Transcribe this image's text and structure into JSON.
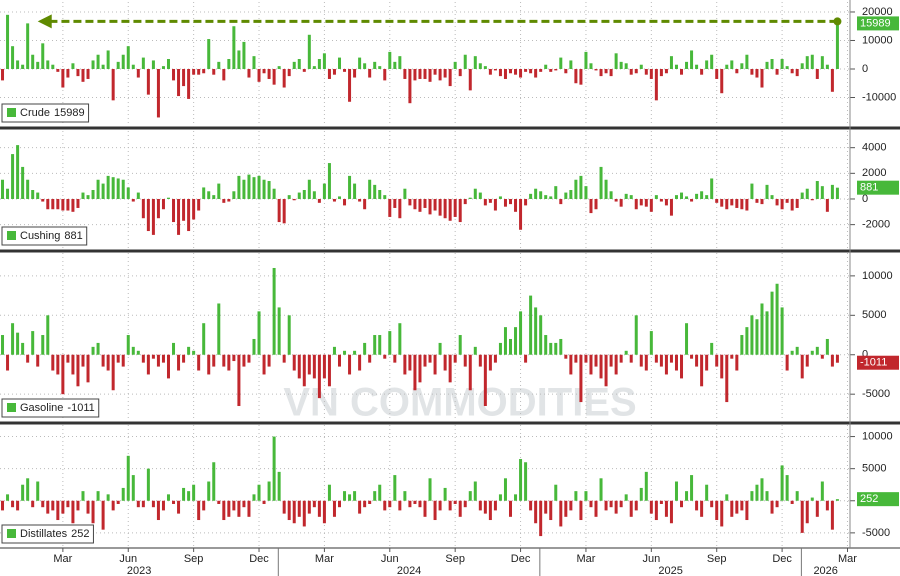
{
  "watermark": "VN COMMODITIES",
  "chart_data": [
    {
      "type": "bar",
      "ylim": [
        -20000,
        23500
      ],
      "yticks": [
        -10000,
        0,
        10000,
        20000
      ],
      "grid": true,
      "series": [
        {
          "name": "Crude",
          "color": "#47b83a",
          "negative_color": "#c1272d",
          "values": [
            -4000,
            19000,
            8000,
            3000,
            1500,
            16000,
            5000,
            2500,
            9000,
            3000,
            1500,
            -1000,
            -6500,
            -3000,
            2000,
            -2500,
            -4500,
            -3500,
            3000,
            5000,
            1500,
            6500,
            -11000,
            2500,
            5000,
            8000,
            1500,
            -3000,
            4000,
            -9000,
            3000,
            -17000,
            1000,
            3500,
            -4000,
            -9500,
            -6000,
            -10500,
            -2000,
            -2000,
            -1500,
            10500,
            -2000,
            2500,
            -4000,
            3500,
            15000,
            6500,
            9500,
            -3000,
            4500,
            -4500,
            -1500,
            -3500,
            -5500,
            1000,
            -6500,
            -2500,
            2500,
            3500,
            -1000,
            12000,
            1000,
            3500,
            5500,
            -3500,
            -2000,
            4000,
            -1000,
            -11500,
            -3000,
            4000,
            2000,
            -3000,
            2500,
            1000,
            -4000,
            6000,
            2500,
            4500,
            -3500,
            -12000,
            -4000,
            -3500,
            -3500,
            -4500,
            -2000,
            -4000,
            -3000,
            -6000,
            2500,
            -2500,
            5000,
            -7500,
            4500,
            2000,
            1000,
            -2000,
            -500,
            -2500,
            -3500,
            -1500,
            -2000,
            -3000,
            -1000,
            -1500,
            -3000,
            -1000,
            1500,
            -1000,
            -500,
            4000,
            -1500,
            3000,
            -5000,
            -5500,
            6000,
            2000,
            -500,
            -2500,
            -1500,
            -2500,
            5500,
            2500,
            2000,
            -2000,
            -1500,
            1500,
            -2000,
            -3500,
            -11000,
            -2500,
            -1500,
            4500,
            1500,
            -2000,
            2500,
            6500,
            1500,
            -2000,
            3000,
            5000,
            -3500,
            -8500,
            1500,
            3000,
            -1500,
            2000,
            5000,
            -2000,
            -3000,
            -6500,
            2500,
            3500,
            -2000,
            3500,
            1000,
            -1500,
            -2500,
            2000,
            4500,
            5000,
            -3500,
            4500,
            1500,
            -8000,
            15989,
            null,
            null
          ]
        }
      ]
    },
    {
      "type": "bar",
      "ylim": [
        -3900,
        5300
      ],
      "yticks": [
        -2000,
        0,
        2000,
        4000
      ],
      "grid": true,
      "series": [
        {
          "name": "Cushing",
          "color": "#47b83a",
          "negative_color": "#c1272d",
          "values": [
            1500,
            800,
            3500,
            4200,
            2500,
            1500,
            700,
            500,
            -200,
            -800,
            -800,
            -800,
            -900,
            -900,
            -1000,
            -700,
            500,
            300,
            700,
            1500,
            1200,
            1800,
            1700,
            1600,
            1500,
            900,
            -200,
            500,
            -1500,
            -2500,
            -2800,
            -1500,
            -800,
            100,
            -1800,
            -2800,
            -1700,
            -2500,
            -1600,
            -900,
            900,
            600,
            300,
            1200,
            -300,
            -200,
            600,
            1800,
            1500,
            1900,
            1700,
            1800,
            1500,
            1400,
            800,
            -1800,
            -1900,
            300,
            -100,
            500,
            700,
            1500,
            600,
            -300,
            1200,
            2800,
            -200,
            200,
            -500,
            1800,
            1200,
            -200,
            -800,
            1500,
            1100,
            700,
            300,
            -1400,
            -700,
            -1500,
            800,
            -500,
            -800,
            -1000,
            -700,
            -1200,
            -900,
            -1300,
            -1500,
            -1700,
            -1400,
            -1800,
            -400,
            100,
            800,
            500,
            -500,
            -300,
            -900,
            200,
            -600,
            -400,
            -1000,
            -2400,
            -500,
            400,
            800,
            600,
            300,
            200,
            1000,
            -400,
            500,
            700,
            1500,
            1800,
            1000,
            -1100,
            -800,
            2500,
            1500,
            600,
            -200,
            -600,
            400,
            300,
            -800,
            -500,
            -600,
            -1000,
            300,
            -200,
            -500,
            -1300,
            300,
            500,
            200,
            -200,
            400,
            600,
            300,
            1600,
            -300,
            -600,
            -800,
            -500,
            -700,
            -800,
            -900,
            1200,
            -300,
            -400,
            1100,
            300,
            -500,
            -800,
            -300,
            -900,
            -700,
            500,
            800,
            -100,
            1400,
            1000,
            -1000,
            1100,
            881,
            null,
            null
          ]
        }
      ]
    },
    {
      "type": "bar",
      "ylim": [
        -8400,
        12900
      ],
      "yticks": [
        -5000,
        0,
        5000,
        10000
      ],
      "grid": true,
      "series": [
        {
          "name": "Gasoline",
          "color": "#47b83a",
          "negative_color": "#c1272d",
          "values": [
            2500,
            -2000,
            4000,
            2800,
            1500,
            -1000,
            3000,
            -1500,
            2500,
            5000,
            -2000,
            -2500,
            -5000,
            -1000,
            -2500,
            -4000,
            -1500,
            -3500,
            1000,
            1500,
            -1500,
            -2000,
            -4500,
            -1000,
            -1500,
            2500,
            1000,
            500,
            -1000,
            -2500,
            -500,
            -1500,
            -1000,
            -3000,
            1500,
            -2000,
            -1000,
            1000,
            500,
            -2000,
            4000,
            -2500,
            -1500,
            6500,
            -1500,
            -2000,
            -800,
            -6500,
            -1500,
            -1000,
            2000,
            5500,
            -2500,
            -1500,
            11000,
            6000,
            -1000,
            5000,
            -2000,
            -3000,
            -4000,
            -2500,
            -3000,
            -5500,
            -3000,
            -4000,
            1000,
            -1500,
            500,
            -2500,
            500,
            -2000,
            1500,
            -1000,
            2500,
            2500,
            -500,
            3000,
            -1000,
            4000,
            -2500,
            -2000,
            -4500,
            -3500,
            -1500,
            -1000,
            -2500,
            1500,
            -2000,
            -3500,
            -1000,
            2500,
            -1500,
            -4500,
            1000,
            -1500,
            -6500,
            -2000,
            -1000,
            1500,
            3500,
            2000,
            3500,
            5500,
            -1000,
            7500,
            6000,
            5000,
            2500,
            1500,
            1500,
            2000,
            -500,
            -2500,
            -1000,
            -6000,
            -1000,
            -2500,
            -1500,
            -3000,
            -4000,
            -1500,
            -2500,
            -1000,
            500,
            -1000,
            5000,
            -1500,
            -2000,
            3000,
            -1000,
            -1500,
            -2500,
            -1000,
            -2000,
            -3000,
            4000,
            -500,
            -1500,
            -4000,
            -2000,
            1500,
            -1500,
            -3000,
            -6000,
            -500,
            -2000,
            2500,
            3500,
            5000,
            4500,
            6500,
            5500,
            8000,
            9000,
            6000,
            -2000,
            500,
            1000,
            -3000,
            -1500,
            500,
            1000,
            -500,
            2000,
            -1500,
            -1011,
            null,
            null
          ]
        }
      ]
    },
    {
      "type": "bar",
      "ylim": [
        -7200,
        11800
      ],
      "yticks": [
        -5000,
        0,
        5000,
        10000
      ],
      "grid": true,
      "categories": [
        null,
        null,
        null,
        null,
        null,
        null,
        null,
        null,
        null,
        null,
        null,
        null,
        "Mar",
        null,
        null,
        null,
        null,
        null,
        null,
        null,
        null,
        null,
        null,
        null,
        null,
        "Jun",
        null,
        null,
        null,
        null,
        null,
        null,
        null,
        null,
        null,
        null,
        null,
        null,
        "Sep",
        null,
        null,
        null,
        null,
        null,
        null,
        null,
        null,
        null,
        null,
        null,
        null,
        "Dec",
        null,
        null,
        null,
        null,
        null,
        null,
        null,
        null,
        null,
        null,
        null,
        null,
        "Mar",
        null,
        null,
        null,
        null,
        null,
        null,
        null,
        null,
        null,
        null,
        null,
        null,
        "Jun",
        null,
        null,
        null,
        null,
        null,
        null,
        null,
        null,
        null,
        null,
        null,
        null,
        "Sep",
        null,
        null,
        null,
        null,
        null,
        null,
        null,
        null,
        null,
        null,
        null,
        null,
        "Dec",
        null,
        null,
        null,
        null,
        null,
        null,
        null,
        null,
        null,
        null,
        null,
        null,
        "Mar",
        null,
        null,
        null,
        null,
        null,
        null,
        null,
        null,
        null,
        null,
        null,
        null,
        "Jun",
        null,
        null,
        null,
        null,
        null,
        null,
        null,
        null,
        null,
        null,
        null,
        null,
        "Sep",
        null,
        null,
        null,
        null,
        null,
        null,
        null,
        null,
        null,
        null,
        null,
        null,
        "Dec",
        null,
        null,
        null,
        null,
        null,
        null,
        null,
        null,
        null,
        null,
        null,
        null,
        "Mar"
      ],
      "year_labels": [
        "2023",
        "2024",
        "2025",
        "2026"
      ],
      "series": [
        {
          "name": "Distillates",
          "color": "#47b83a",
          "negative_color": "#c1272d",
          "values": [
            -1500,
            1000,
            -1000,
            -1500,
            2500,
            3500,
            -1000,
            3000,
            -1000,
            -2000,
            -1500,
            -3000,
            -2000,
            -1000,
            -3500,
            -1500,
            1500,
            -2000,
            -3500,
            1500,
            -4500,
            1000,
            -1500,
            -500,
            2000,
            7000,
            4000,
            -1000,
            -1000,
            5000,
            -1000,
            -3000,
            -1500,
            1000,
            -500,
            -2000,
            2000,
            1500,
            2500,
            -3000,
            -1500,
            3000,
            6000,
            -500,
            -3000,
            -2500,
            -1500,
            -2500,
            -1000,
            -2500,
            1000,
            2500,
            -500,
            3000,
            10000,
            4500,
            -2000,
            -3000,
            -3500,
            -2500,
            -4000,
            -2000,
            -1000,
            -2500,
            -3500,
            2500,
            -2500,
            -1000,
            1500,
            1000,
            1500,
            -2000,
            -1000,
            -500,
            1500,
            2500,
            -1500,
            -1000,
            4000,
            -1500,
            1500,
            -1000,
            -500,
            -1000,
            -2500,
            3500,
            -3000,
            -1500,
            2000,
            -1500,
            -500,
            -2500,
            -1000,
            1500,
            3000,
            -1500,
            -2000,
            -3000,
            -1500,
            1000,
            3500,
            -2500,
            1000,
            6500,
            6000,
            -1500,
            -3500,
            -5500,
            -2000,
            -3000,
            2500,
            -4000,
            -2500,
            -1500,
            1500,
            -3000,
            1500,
            -1000,
            -2500,
            3500,
            -1500,
            -1000,
            -2000,
            -1000,
            1000,
            -2500,
            -1500,
            2000,
            4500,
            -2000,
            -3000,
            -500,
            -2500,
            -3500,
            3000,
            -1000,
            1500,
            4000,
            -1500,
            -2500,
            2500,
            -1000,
            -3000,
            -4000,
            1000,
            -2500,
            -2000,
            -1500,
            -3000,
            1500,
            2500,
            3500,
            1500,
            -2000,
            -1000,
            5500,
            4000,
            -500,
            1500,
            -5000,
            -3500,
            500,
            -2500,
            3000,
            -1500,
            -4500,
            252,
            null,
            null
          ]
        }
      ]
    }
  ]
}
